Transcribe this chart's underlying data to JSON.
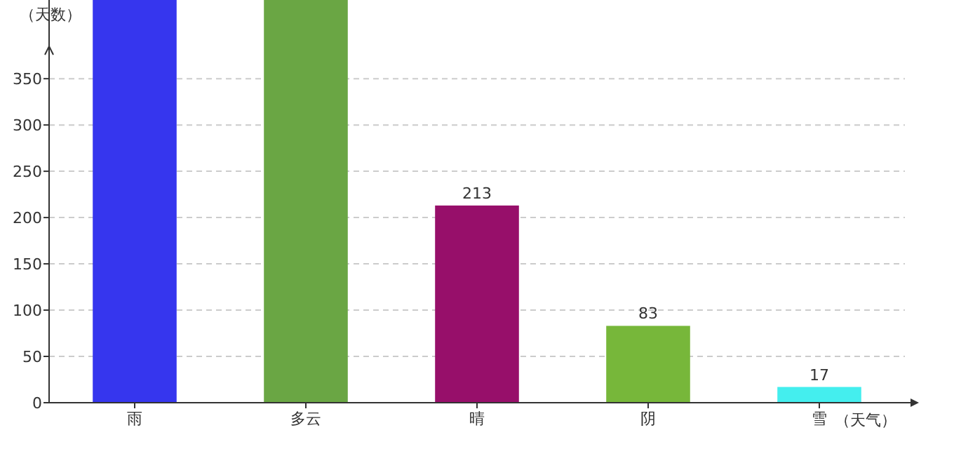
{
  "chart_data": {
    "type": "bar",
    "xlabel": "（天气）",
    "ylabel": "（天数）",
    "categories": [
      "雨",
      "多云",
      "晴",
      "阴",
      "雪"
    ],
    "values": [
      435,
      435,
      213,
      83,
      17
    ],
    "value_labels": [
      null,
      null,
      "213",
      "83",
      "17"
    ],
    "colors": [
      "#3636ee",
      "#6aa644",
      "#970f6a",
      "#77b73a",
      "#44eeee"
    ],
    "ylim": [
      0,
      435
    ],
    "yticks": [
      0,
      50,
      100,
      150,
      200,
      250,
      300,
      350
    ],
    "grid": "y"
  }
}
